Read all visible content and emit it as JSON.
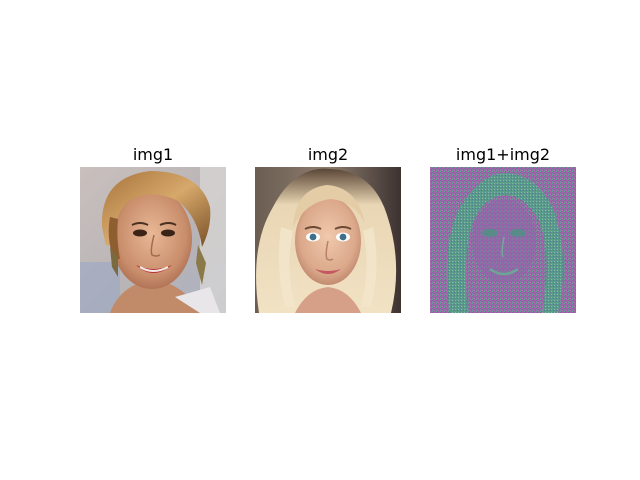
{
  "panels": [
    {
      "title": "img1",
      "subject": "smiling woman with tied-back golden hair, dangling earrings"
    },
    {
      "title": "img2",
      "subject": "woman with long wavy platinum blonde hair"
    },
    {
      "title": "img1+img2",
      "subject": "noisy green-purple blended face pattern"
    }
  ],
  "colors": {
    "background": "#ffffff",
    "title_text": "#000000",
    "mix_green": "#3fae7d",
    "mix_purple": "#9a57a6"
  }
}
